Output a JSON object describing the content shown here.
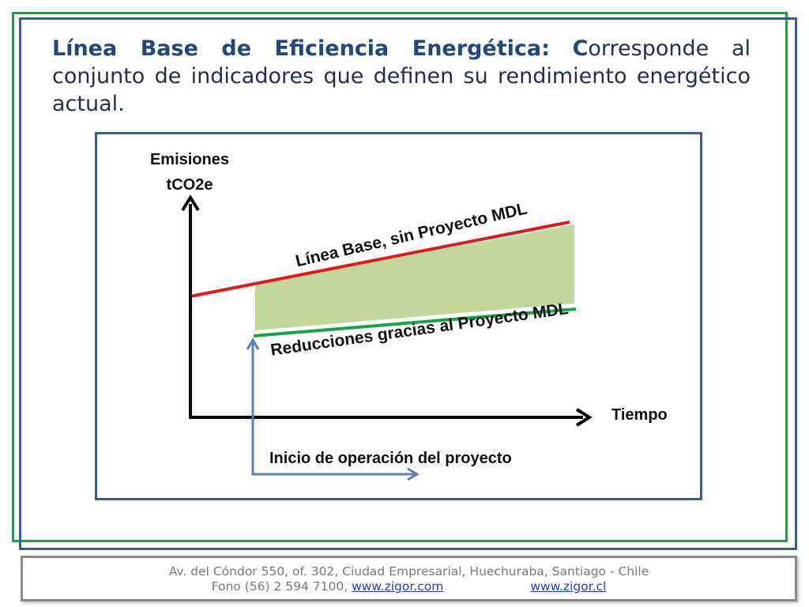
{
  "heading": {
    "term": "Línea Base de Eficiencia Energética:",
    "first_letter": "C",
    "rest": "orresponde al conjunto de indicadores que definen su rendimiento energético actual."
  },
  "diagram": {
    "y_axis_label_line1": "Emisiones",
    "y_axis_label_line2": "tCO2e",
    "x_axis_label": "Tiempo",
    "baseline_label": "Línea Base, sin Proyecto MDL",
    "reductions_label": "Reducciones  gracias al Proyecto MDL",
    "start_label": "Inicio de operación del proyecto",
    "colors": {
      "baseline": "#e01a1a",
      "project_line": "#16a44a",
      "reduction_area": "#c4d79b",
      "start_arrow": "#5b7fbd",
      "axes": "#000000"
    }
  },
  "footer": {
    "address": "Av.  del Cóndor 550, of. 302, Ciudad Empresarial, Huechuraba, Santiago - Chile",
    "phone": "Fono (56) 2 594 7100, ",
    "link1": "www.zigor.com",
    "link2": "www.zigor.cl"
  }
}
